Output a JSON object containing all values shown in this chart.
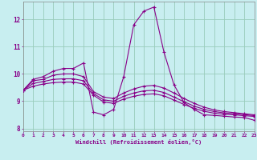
{
  "x": [
    0,
    1,
    2,
    3,
    4,
    5,
    6,
    7,
    8,
    9,
    10,
    11,
    12,
    13,
    14,
    15,
    16,
    17,
    18,
    19,
    20,
    21,
    22,
    23
  ],
  "line1": [
    9.4,
    9.8,
    9.9,
    10.1,
    10.2,
    10.2,
    10.4,
    8.6,
    8.5,
    8.7,
    9.9,
    11.8,
    12.3,
    12.45,
    10.8,
    9.6,
    8.95,
    8.7,
    8.5,
    8.48,
    8.45,
    8.42,
    8.4,
    8.3
  ],
  "line2": [
    9.4,
    9.75,
    9.8,
    9.95,
    10.0,
    10.0,
    9.9,
    9.35,
    9.15,
    9.1,
    9.3,
    9.45,
    9.55,
    9.58,
    9.48,
    9.3,
    9.1,
    8.92,
    8.78,
    8.68,
    8.62,
    8.58,
    8.54,
    8.5
  ],
  "line3": [
    9.4,
    9.65,
    9.72,
    9.8,
    9.82,
    9.82,
    9.75,
    9.28,
    9.05,
    9.0,
    9.18,
    9.3,
    9.38,
    9.4,
    9.32,
    9.15,
    8.98,
    8.82,
    8.7,
    8.62,
    8.57,
    8.54,
    8.51,
    8.47
  ],
  "line4": [
    9.4,
    9.55,
    9.63,
    9.68,
    9.7,
    9.7,
    9.63,
    9.22,
    8.97,
    8.92,
    9.08,
    9.18,
    9.25,
    9.27,
    9.2,
    9.04,
    8.88,
    8.74,
    8.63,
    8.56,
    8.52,
    8.5,
    8.47,
    8.44
  ],
  "line_color": "#880088",
  "bg_color": "#c8eef0",
  "grid_color": "#99ccbb",
  "xlabel": "Windchill (Refroidissement éolien,°C)",
  "xlim": [
    0,
    23
  ],
  "ylim": [
    7.9,
    12.65
  ],
  "yticks": [
    8,
    9,
    10,
    11,
    12
  ],
  "xticks": [
    0,
    1,
    2,
    3,
    4,
    5,
    6,
    7,
    8,
    9,
    10,
    11,
    12,
    13,
    14,
    15,
    16,
    17,
    18,
    19,
    20,
    21,
    22,
    23
  ]
}
